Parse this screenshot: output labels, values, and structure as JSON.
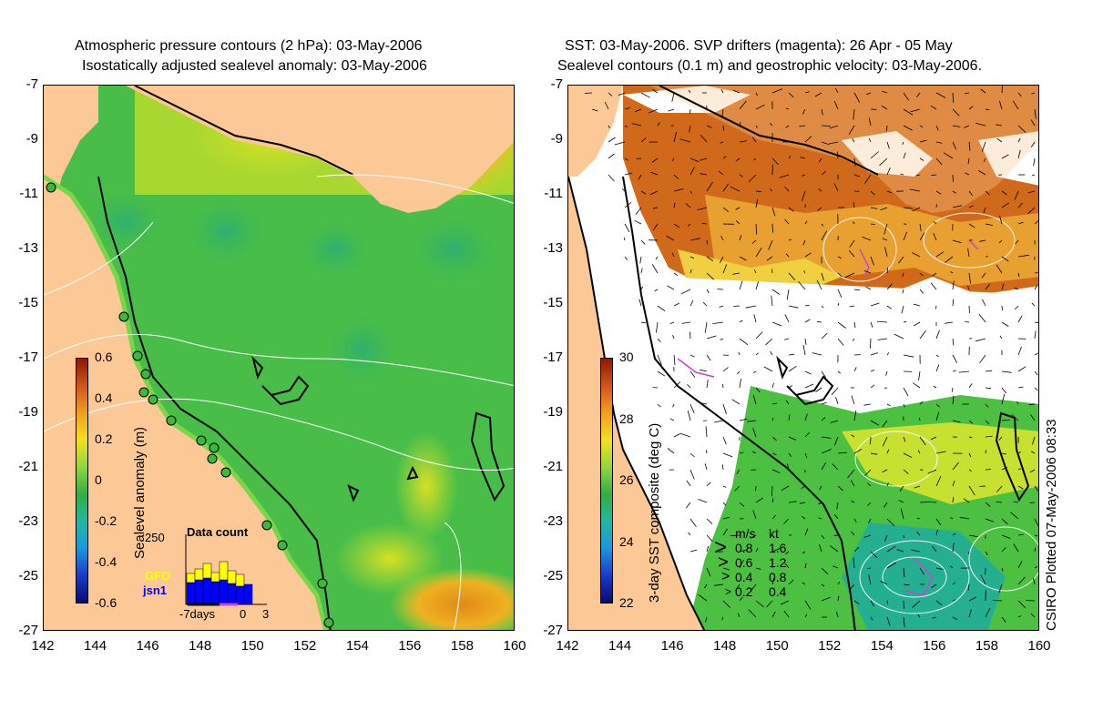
{
  "left_panel": {
    "title_line1": "Atmospheric pressure contours (2 hPa): 03-May-2006",
    "title_line2": "Isostatically adjusted sealevel anomaly: 03-May-2006",
    "colorbar_label": "Sealevel anomaly (m)",
    "colorbar_ticks": [
      "0.6",
      "0.4",
      "0.2",
      "0",
      "-0.2",
      "-0.4",
      "-0.6"
    ],
    "colorbar_colors": [
      "#8b1a00",
      "#d2541a",
      "#f0a020",
      "#f5e020",
      "#8fd640",
      "#30b040",
      "#20b8a0",
      "#1898e0",
      "#1a3ac8",
      "#0a0a70"
    ],
    "inset": {
      "title": "Data count",
      "ymax": "250",
      "x_ticks": [
        "-7days",
        "0",
        "3"
      ],
      "legend_gfo": "GFO",
      "legend_jsn1": "jsn1",
      "gfo_color": "#ffff00",
      "jsn1_color": "#0000ff"
    }
  },
  "right_panel": {
    "title_line1": "SST: 03-May-2006. SVP drifters (magenta): 26 Apr - 05 May",
    "title_line2": "Sealevel contours (0.1 m) and geostrophic velocity: 03-May-2006.",
    "colorbar_label": "3-day SST composite (deg C)",
    "colorbar_ticks": [
      "30",
      "28",
      "26",
      "24",
      "22"
    ],
    "colorbar_colors": [
      "#8b1a00",
      "#d2541a",
      "#f0a020",
      "#f5e020",
      "#8fd640",
      "#30b040",
      "#20b8a0",
      "#1898e0",
      "#1a3ac8",
      "#0a0a70"
    ],
    "speed_legend": {
      "header_ms": "m/s",
      "header_kt": "kt",
      "rows": [
        {
          "ms": "0.8",
          "kt": "1.6"
        },
        {
          "ms": "0.6",
          "kt": "1.2"
        },
        {
          "ms": "0.4",
          "kt": "0.8"
        },
        {
          "ms": "0.2",
          "kt": "0.4"
        }
      ]
    }
  },
  "axes": {
    "x_ticks": [
      "142",
      "144",
      "146",
      "148",
      "150",
      "152",
      "154",
      "156",
      "158",
      "160"
    ],
    "y_ticks": [
      "-7",
      "-9",
      "-11",
      "-13",
      "-15",
      "-17",
      "-19",
      "-21",
      "-23",
      "-25",
      "-27"
    ]
  },
  "credit": "CSIRO Plotted 07-May-2006 08:33",
  "colors": {
    "land": "#fbc896",
    "ocean_green": "#5ccf3c",
    "cloud": "#ffffff",
    "coast": "#000000",
    "drifter": "#d040d0"
  }
}
